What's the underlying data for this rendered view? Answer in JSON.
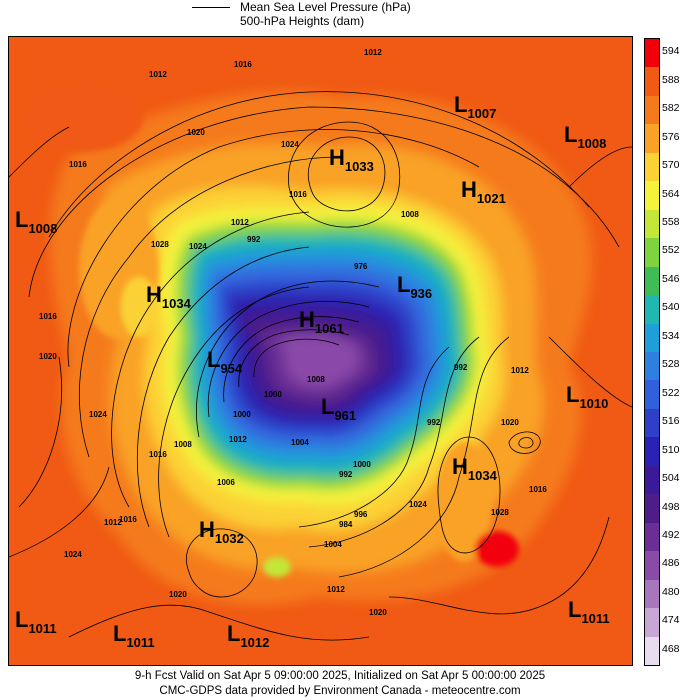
{
  "legend": {
    "line1": "Mean Sea Level Pressure (hPa)",
    "line2": "500-hPa Heights (dam)"
  },
  "colorbar": {
    "labels": [
      "594",
      "588",
      "582",
      "576",
      "570",
      "564",
      "558",
      "552",
      "546",
      "540",
      "534",
      "528",
      "522",
      "516",
      "510",
      "504",
      "498",
      "492",
      "486",
      "480",
      "474",
      "468"
    ],
    "colors": [
      "#f2000a",
      "#f05a14",
      "#f57a1c",
      "#f9a227",
      "#fbd236",
      "#f5f23c",
      "#c4e639",
      "#7fd33f",
      "#3fbc55",
      "#1fb7b0",
      "#1e9fd8",
      "#2d7fe0",
      "#3160dc",
      "#2e3fc8",
      "#2a22b2",
      "#3a1a9a",
      "#4e1d8a",
      "#6a2e96",
      "#8a4aa8",
      "#a876bd",
      "#c8a6d6",
      "#e8dcef"
    ]
  },
  "systems": [
    {
      "type": "H",
      "value": "1033"
    },
    {
      "type": "L",
      "value": "1007"
    },
    {
      "type": "L",
      "value": "1008"
    },
    {
      "type": "H",
      "value": "1021"
    },
    {
      "type": "L",
      "value": "1008"
    },
    {
      "type": "H",
      "value": "1034"
    },
    {
      "type": "L",
      "value": "936"
    },
    {
      "type": "H",
      "value": "1061"
    },
    {
      "type": "L",
      "value": "954"
    },
    {
      "type": "L",
      "value": "961"
    },
    {
      "type": "L",
      "value": "1010"
    },
    {
      "type": "H",
      "value": "1034"
    },
    {
      "type": "H",
      "value": "1032"
    },
    {
      "type": "L",
      "value": "1011"
    },
    {
      "type": "L",
      "value": "1011"
    },
    {
      "type": "L",
      "value": "1012"
    },
    {
      "type": "L",
      "value": "1011"
    }
  ],
  "contour_labels": [
    "1012",
    "1012",
    "1016",
    "1020",
    "1024",
    "1016",
    "1008",
    "1012",
    "1016",
    "1028",
    "1024",
    "1016",
    "1020",
    "1024",
    "1012",
    "1000",
    "992",
    "976",
    "992",
    "1000",
    "1008",
    "1016",
    "1024",
    "1028",
    "1020",
    "1016",
    "1004",
    "1012",
    "1020",
    "1012",
    "1016",
    "1020",
    "1024",
    "984",
    "996",
    "992",
    "1000",
    "1006",
    "1008",
    "992",
    "1004",
    "1012"
  ],
  "footer": {
    "line1": "9-h Fcst Valid on Sat Apr  5 09:00:00 2025, Initialized on Sat Apr  5 00:00:00 2025",
    "line2": "CMC-GDPS data provided by Environment Canada - meteocentre.com"
  }
}
